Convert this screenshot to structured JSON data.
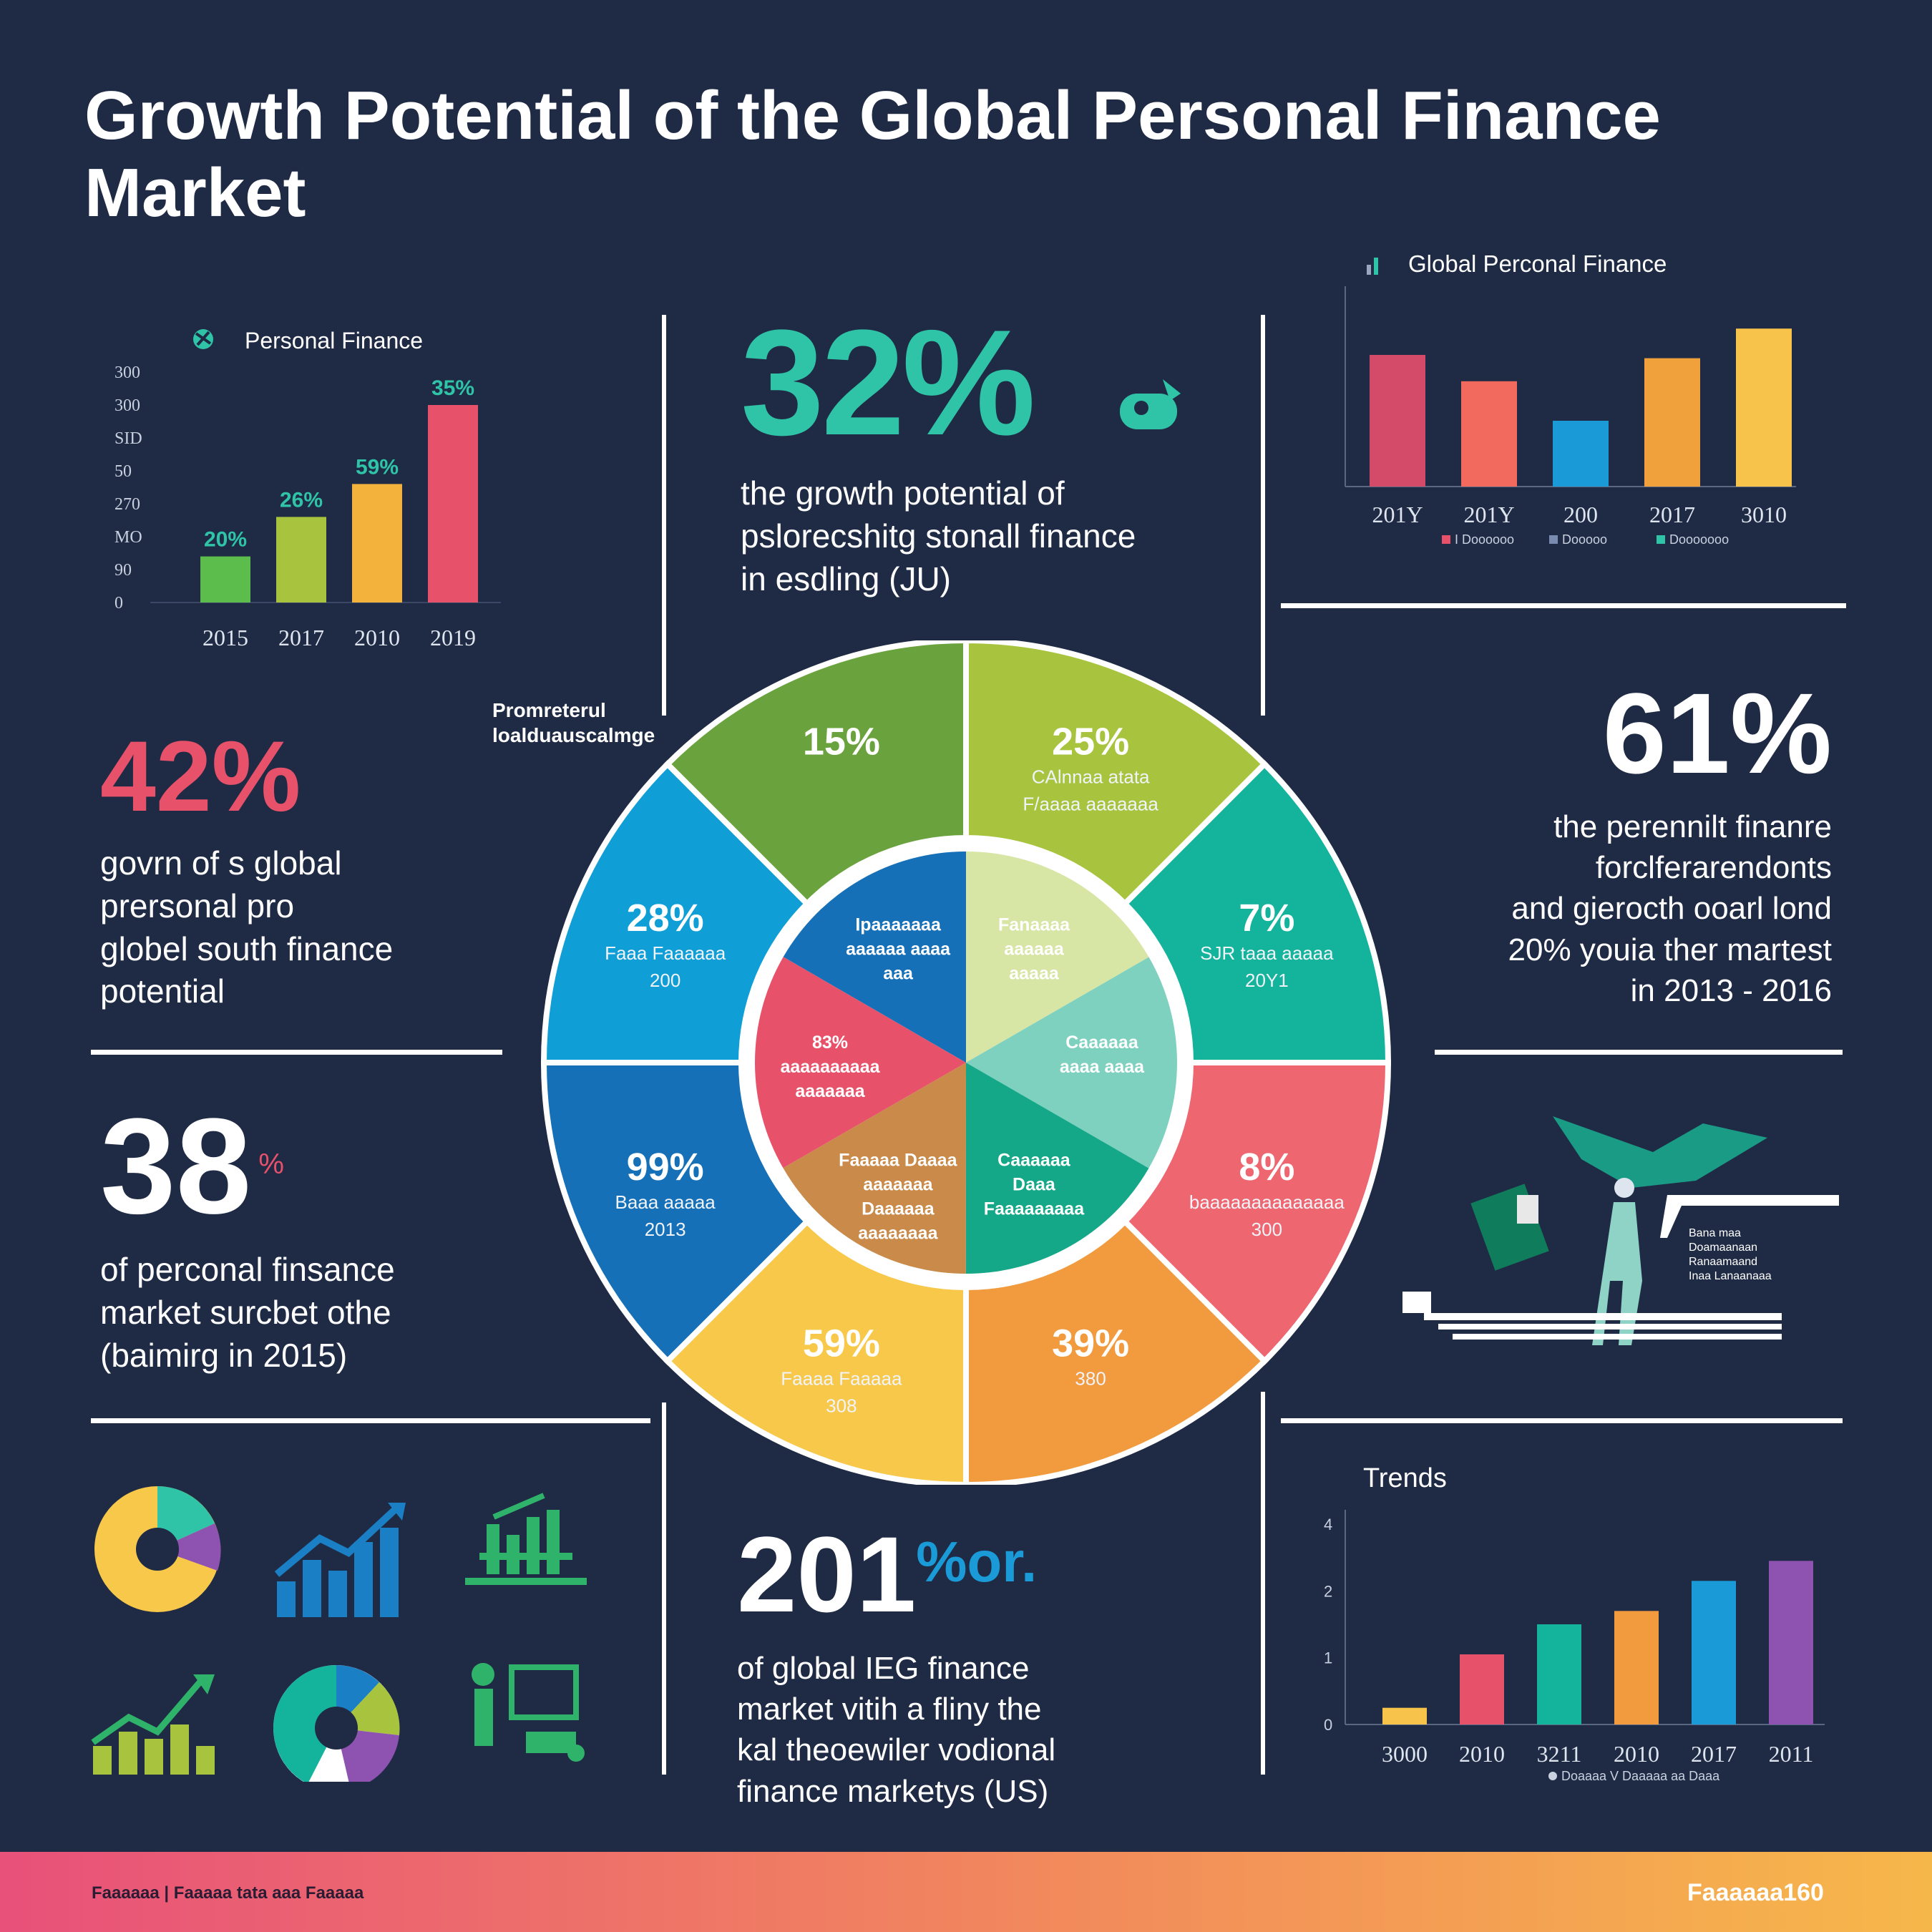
{
  "title": "Growth Potential of the Global Personal Finance Market",
  "colors": {
    "background": "#1f2b45",
    "teal": "#2fc4a8",
    "red": "#e8516a",
    "white": "#ffffff"
  },
  "stats": {
    "stat_32": {
      "value": "32%",
      "text": [
        "the growth potential of",
        "pslorecshitg stonall finance",
        "in esdling (JU)"
      ]
    },
    "stat_42": {
      "value": "42%",
      "text": [
        "govrn of s global",
        "prersonal pro",
        "globel south finance",
        "potential"
      ]
    },
    "stat_38": {
      "value": "38",
      "suffix": "%",
      "text": [
        "of perconal finsance",
        "market surcbet othe",
        "(baimirg in 2015)"
      ]
    },
    "stat_61": {
      "value": "61%",
      "text": [
        "the perennilt finanre",
        "forclferarendonts",
        "and gierocth ooarl lond",
        "20% youia ther martest",
        "in 2013 - 2016"
      ]
    },
    "stat_201": {
      "value": "201",
      "suffix": "%or.",
      "text": [
        "of global IEG finance",
        "market vitih a fliny the",
        "kal theoewiler vodional",
        "finance marketys (US)"
      ]
    }
  },
  "wheel_caption": [
    "Promreterul",
    "loalduauscalmge"
  ],
  "illustration_caption": [
    "Bana maa",
    "Doamaanaan",
    "Ranaamaand",
    "Inaa Lanaanaaa"
  ],
  "trends_title": "Trends",
  "footer": {
    "left": "Faaaaaa | Faaaaa tata aaa Faaaaa",
    "brand": "Faaaaaa160"
  },
  "chart_data": [
    {
      "id": "personal-finance-bars",
      "type": "bar",
      "title": "Personal Finance",
      "categories": [
        "2015",
        "2017",
        "2010",
        "2019"
      ],
      "values": [
        70,
        130,
        180,
        300
      ],
      "colors": [
        "#5cbc4c",
        "#a8c43f",
        "#f2b23c",
        "#e8516a"
      ],
      "data_labels": [
        "20%",
        "26%",
        "59%",
        "35%"
      ],
      "yticks": [
        "0",
        "90",
        "MO",
        "270",
        "50",
        "SID",
        "300",
        "300"
      ],
      "ylim": [
        0,
        350
      ],
      "grid": false
    },
    {
      "id": "global-personal-finance-bars",
      "type": "bar",
      "title": "Global Perconal Finance",
      "categories": [
        "201Y",
        "201Y",
        "200",
        "2017",
        "3010"
      ],
      "values": [
        80,
        64,
        40,
        78,
        96
      ],
      "colors": [
        "#d44b6a",
        "#f26a5e",
        "#1a9bd8",
        "#f0a13c",
        "#f7c34a"
      ],
      "legend": [
        "I Doooooo",
        "Dooooo",
        "Dooooooo"
      ],
      "legend_colors": [
        "#e8516a",
        "#7a8bb0",
        "#2fc4a8"
      ],
      "ylim": [
        0,
        100
      ],
      "grid": false
    },
    {
      "id": "market-wheel",
      "type": "pie",
      "outer_slices": [
        {
          "label": "25%",
          "sub": [
            "CAlnnaa atata",
            "F/aaaa aaaaaaa"
          ],
          "value": 12.5,
          "color": "#a8c43f"
        },
        {
          "label": "7%",
          "sub": [
            "SJR taaa aaaaa",
            "20Y1"
          ],
          "value": 12.5,
          "color": "#14b39c"
        },
        {
          "label": "8%",
          "sub": [
            "baaaaaaaaaaaaaa",
            "300"
          ],
          "value": 12.5,
          "color": "#ee6670"
        },
        {
          "label": "39%",
          "sub": [
            "380"
          ],
          "value": 12.5,
          "color": "#f29a3e"
        },
        {
          "label": "59%",
          "sub": [
            "Faaaa Faaaaa",
            "308"
          ],
          "value": 12.5,
          "color": "#f7c84a"
        },
        {
          "label": "99%",
          "sub": [
            "Baaa aaaaa",
            "2013"
          ],
          "value": 12.5,
          "color": "#1670b8"
        },
        {
          "label": "28%",
          "sub": [
            "Faaa Faaaaaa",
            "200"
          ],
          "value": 12.5,
          "color": "#109ed6"
        },
        {
          "label": "15%",
          "sub": [],
          "value": 12.5,
          "color": "#6aa33e"
        }
      ],
      "inner_slices": [
        {
          "label": [
            "Fanaaaa",
            "aaaaaa",
            "aaaaa"
          ],
          "value": 16.67,
          "color": "#d7e5a5"
        },
        {
          "label": [
            "Caaaaaa",
            "aaaa aaaa"
          ],
          "value": 16.67,
          "color": "#7fd1bf"
        },
        {
          "label": [
            "Caaaaaa",
            "Daaa",
            "Faaaaaaaaa"
          ],
          "value": 16.67,
          "color": "#14a889"
        },
        {
          "label": [
            "Faaaaa Daaaa",
            "aaaaaaa",
            "Daaaaaa",
            "aaaaaaaa"
          ],
          "value": 16.67,
          "color": "#c98a4a"
        },
        {
          "label": [
            "83%",
            "aaaaaaaaaa",
            "aaaaaaa"
          ],
          "value": 16.67,
          "color": "#e8516a"
        },
        {
          "label": [
            "Ipaaaaaaa",
            "aaaaaa aaaa",
            "aaa"
          ],
          "value": 16.65,
          "color": "#1670b8"
        }
      ]
    },
    {
      "id": "trends-bars",
      "type": "bar",
      "title": "Trends",
      "categories": [
        "3000",
        "2010",
        "3211",
        "2010",
        "2017",
        "2011"
      ],
      "values": [
        0.25,
        1.05,
        1.5,
        1.7,
        2.15,
        2.45
      ],
      "colors": [
        "#f7c34a",
        "#e8516a",
        "#14b39c",
        "#f29a3e",
        "#1a9bd8",
        "#8e52b0"
      ],
      "yticks": [
        "0",
        "1",
        "2",
        "4"
      ],
      "ylim": [
        0,
        3
      ],
      "legend": [
        "Doaaaa V Daaaaa aa Daaa"
      ],
      "grid": false
    }
  ]
}
